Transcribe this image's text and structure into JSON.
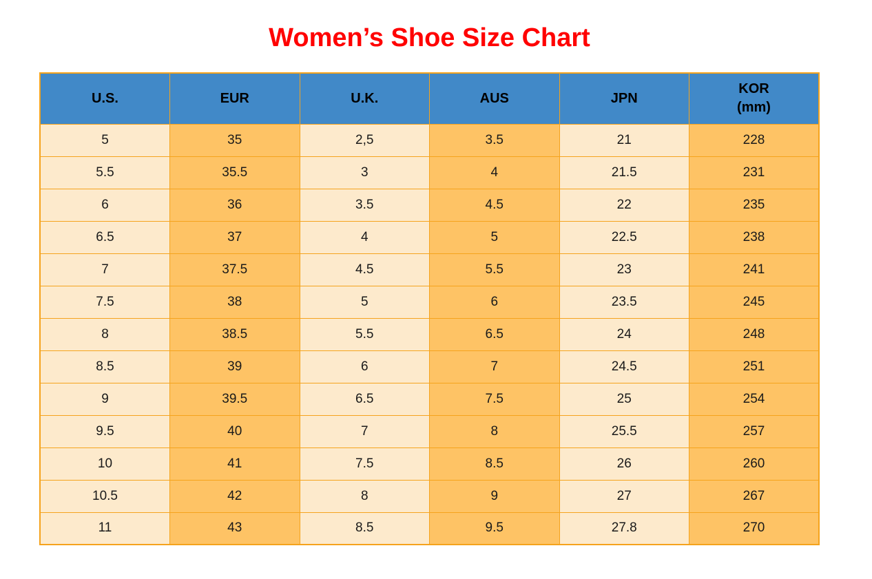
{
  "title": "Women’s Shoe Size Chart",
  "colors": {
    "header_bg": "#4189C8",
    "row_light": "#FDEACC",
    "row_orange": "#FEC365",
    "grid_border": "#F5A31C",
    "title_red": "#FF0000",
    "cell_text": "#1a1a1a"
  },
  "chart_data": {
    "type": "table",
    "title": "Women’s Shoe Size Chart",
    "columns": [
      {
        "key": "us",
        "label": "U.S.",
        "sub": ""
      },
      {
        "key": "eur",
        "label": "EUR",
        "sub": ""
      },
      {
        "key": "uk",
        "label": "U.K.",
        "sub": ""
      },
      {
        "key": "aus",
        "label": "AUS",
        "sub": ""
      },
      {
        "key": "jpn",
        "label": "JPN",
        "sub": ""
      },
      {
        "key": "kor",
        "label": "KOR",
        "sub": "(mm)"
      }
    ],
    "rows": [
      [
        "5",
        "35",
        "2,5",
        "3.5",
        "21",
        "228"
      ],
      [
        "5.5",
        "35.5",
        "3",
        "4",
        "21.5",
        "231"
      ],
      [
        "6",
        "36",
        "3.5",
        "4.5",
        "22",
        "235"
      ],
      [
        "6.5",
        "37",
        "4",
        "5",
        "22.5",
        "238"
      ],
      [
        "7",
        "37.5",
        "4.5",
        "5.5",
        "23",
        "241"
      ],
      [
        "7.5",
        "38",
        "5",
        "6",
        "23.5",
        "245"
      ],
      [
        "8",
        "38.5",
        "5.5",
        "6.5",
        "24",
        "248"
      ],
      [
        "8.5",
        "39",
        "6",
        "7",
        "24.5",
        "251"
      ],
      [
        "9",
        "39.5",
        "6.5",
        "7.5",
        "25",
        "254"
      ],
      [
        "9.5",
        "40",
        "7",
        "8",
        "25.5",
        "257"
      ],
      [
        "10",
        "41",
        "7.5",
        "8.5",
        "26",
        "260"
      ],
      [
        "10.5",
        "42",
        "8",
        "9",
        "27",
        "267"
      ],
      [
        "11",
        "43",
        "8.5",
        "9.5",
        "27.8",
        "270"
      ]
    ],
    "column_fill_pattern": [
      "light",
      "orange",
      "light",
      "orange",
      "light",
      "orange"
    ]
  }
}
